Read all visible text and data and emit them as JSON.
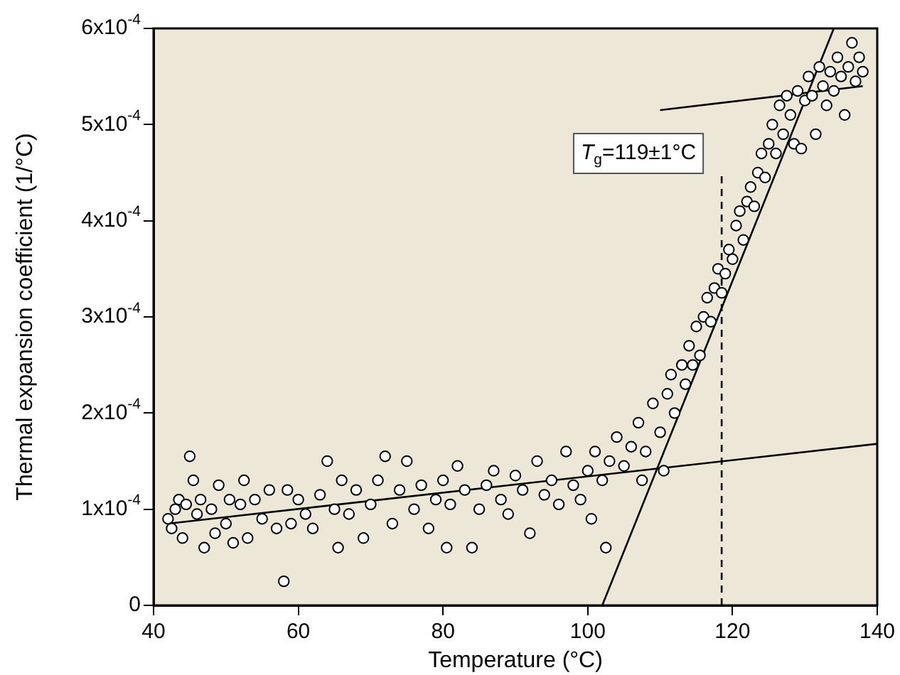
{
  "chart_data": {
    "type": "scatter",
    "xlabel": "Temperature (°C)",
    "ylabel": "Thermal expansion coefficient (1/°C)",
    "annotations": [
      "T$_{g}$=119±1°C"
    ],
    "xlim": [
      40,
      140
    ],
    "xticks": [
      40,
      60,
      80,
      100,
      120,
      140
    ],
    "ylim": [
      0,
      0.0006
    ],
    "yticks": [
      0,
      {
        "value": 0.0001,
        "label": "1x10$^{-4}$"
      },
      {
        "value": 0.0002,
        "label": "2x10$^{-4}$"
      },
      {
        "value": 0.0003,
        "label": "3x10$^{-4}$"
      },
      {
        "value": 0.0004,
        "label": "4x10$^{-4}$"
      },
      {
        "value": 0.0005,
        "label": "5x10$^{-4}$"
      },
      {
        "value": 0.0006,
        "label": "6x10$^{-4}$"
      }
    ],
    "legend": false,
    "marker": "circle",
    "series": [
      {
        "type": "scatter",
        "color": "#000000",
        "x": [
          42,
          42.5,
          43,
          43.5,
          44,
          44.5,
          45,
          45.5,
          46,
          46.5,
          47,
          48,
          48.5,
          49,
          50,
          50.5,
          51,
          52,
          52.5,
          53,
          54,
          55,
          56,
          57,
          58,
          58.5,
          59,
          60,
          61,
          62,
          63,
          64,
          65,
          65.5,
          66,
          67,
          68,
          69,
          70,
          71,
          72,
          73,
          74,
          75,
          76,
          77,
          78,
          79,
          80,
          80.5,
          81,
          82,
          83,
          84,
          85,
          86,
          87,
          88,
          89,
          90,
          91,
          92,
          93,
          94,
          95,
          96,
          97,
          98,
          99,
          100,
          100.5,
          101,
          102,
          102.5,
          103,
          104,
          105,
          106,
          107,
          107.5,
          108,
          109,
          110,
          110.5,
          111,
          111.5,
          112,
          113,
          113.5,
          114,
          114.5,
          115,
          115.5,
          116,
          116.5,
          117,
          117.5,
          118,
          118.5,
          119,
          119.5,
          120,
          120.5,
          121,
          121.5,
          122,
          122.5,
          123,
          123.5,
          124,
          124.5,
          125,
          125.5,
          126,
          126.5,
          127,
          127.5,
          128,
          128.5,
          129,
          129.5,
          130,
          130.5,
          131,
          131.5,
          132,
          132.5,
          133,
          133.5,
          134,
          134.5,
          135,
          135.5,
          136,
          136.5,
          137,
          137.5,
          138
        ],
        "values": [
          9e-05,
          8e-05,
          0.0001,
          0.00011,
          7e-05,
          0.000105,
          0.000155,
          0.00013,
          9.5e-05,
          0.00011,
          6e-05,
          0.0001,
          7.5e-05,
          0.000125,
          8.5e-05,
          0.00011,
          6.5e-05,
          0.000105,
          0.00013,
          7e-05,
          0.00011,
          9e-05,
          0.00012,
          8e-05,
          2.5e-05,
          0.00012,
          8.5e-05,
          0.00011,
          9.5e-05,
          8e-05,
          0.000115,
          0.00015,
          0.0001,
          6e-05,
          0.00013,
          9.5e-05,
          0.00012,
          7e-05,
          0.000105,
          0.00013,
          0.000155,
          8.5e-05,
          0.00012,
          0.00015,
          0.0001,
          0.000125,
          8e-05,
          0.00011,
          0.00013,
          6e-05,
          0.000105,
          0.000145,
          0.00012,
          6e-05,
          0.0001,
          0.000125,
          0.00014,
          0.00011,
          9.5e-05,
          0.000135,
          0.00012,
          7.5e-05,
          0.00015,
          0.000115,
          0.00013,
          0.000105,
          0.00016,
          0.000125,
          0.00011,
          0.00014,
          9e-05,
          0.00016,
          0.00013,
          6e-05,
          0.00015,
          0.000175,
          0.000145,
          0.000165,
          0.00019,
          0.00013,
          0.00016,
          0.00021,
          0.00018,
          0.00014,
          0.00022,
          0.00024,
          0.0002,
          0.00025,
          0.00023,
          0.00027,
          0.00025,
          0.00029,
          0.00026,
          0.0003,
          0.00032,
          0.000295,
          0.00033,
          0.00035,
          0.000325,
          0.000345,
          0.00037,
          0.00036,
          0.000395,
          0.00041,
          0.00038,
          0.00042,
          0.000435,
          0.000415,
          0.00045,
          0.00047,
          0.000445,
          0.00048,
          0.0005,
          0.00047,
          0.00052,
          0.00049,
          0.00053,
          0.00051,
          0.00048,
          0.000535,
          0.000475,
          0.000525,
          0.00055,
          0.00053,
          0.00049,
          0.00056,
          0.00054,
          0.00052,
          0.000555,
          0.000535,
          0.00057,
          0.00055,
          0.00051,
          0.00056,
          0.000585,
          0.000545,
          0.00057,
          0.000555
        ]
      },
      {
        "type": "line",
        "color": "#000000",
        "marker": "none",
        "x": [
          42,
          140
        ],
        "values": [
          8.5e-05,
          0.000168
        ]
      },
      {
        "type": "line",
        "color": "#000000",
        "marker": "none",
        "x": [
          102,
          134
        ],
        "values": [
          0,
          0.0006
        ]
      },
      {
        "type": "line",
        "color": "#000000",
        "marker": "none",
        "x": [
          110,
          138
        ],
        "values": [
          0.000515,
          0.00054
        ]
      },
      {
        "type": "line",
        "color": "#000000",
        "marker": "none",
        "line_style": "dashed",
        "x": [
          118.5,
          118.5
        ],
        "values": [
          0,
          0.00045
        ]
      }
    ]
  }
}
